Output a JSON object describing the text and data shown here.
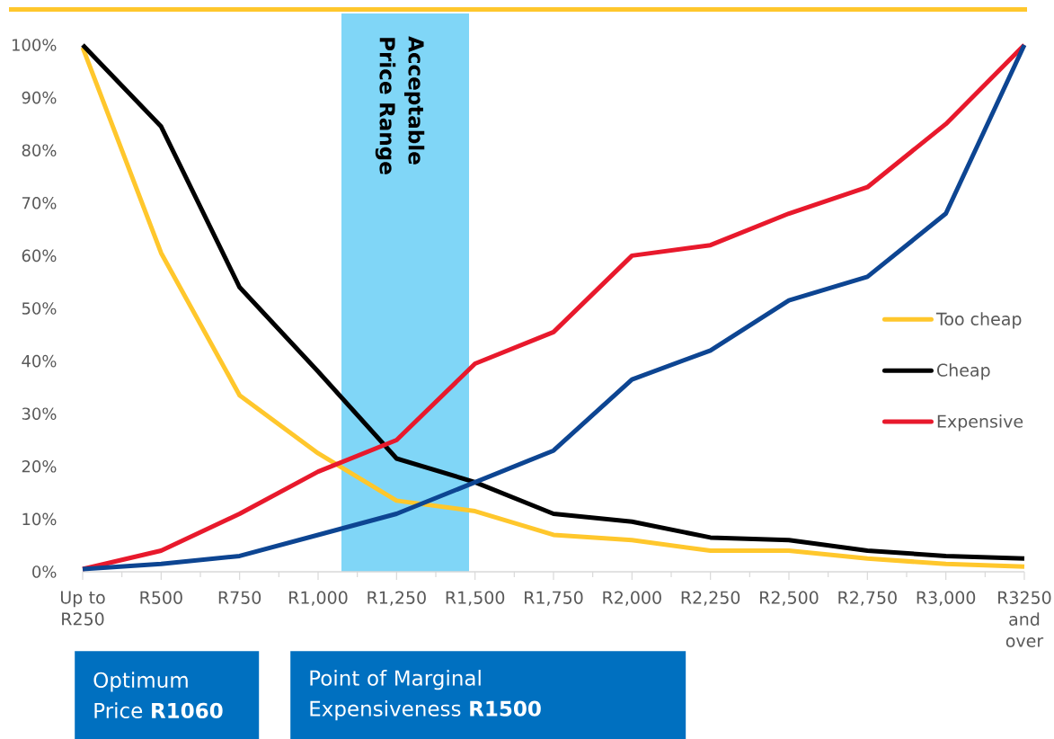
{
  "chart_data": {
    "type": "line",
    "categories": [
      "Up to R250",
      "R500",
      "R750",
      "R1,000",
      "R1,250",
      "R1,500",
      "R1,750",
      "R2,000",
      "R2,250",
      "R2,500",
      "R2,750",
      "R3,000",
      "R3250 and over"
    ],
    "ylim": [
      0,
      100
    ],
    "yticks": [
      {
        "value": 0,
        "label": "0%"
      },
      {
        "value": 10,
        "label": "10%"
      },
      {
        "value": 20,
        "label": "20%"
      },
      {
        "value": 30,
        "label": "30%"
      },
      {
        "value": 40,
        "label": "40%"
      },
      {
        "value": 50,
        "label": "50%"
      },
      {
        "value": 60,
        "label": "60%"
      },
      {
        "value": 70,
        "label": "70%"
      },
      {
        "value": 80,
        "label": "80%"
      },
      {
        "value": 90,
        "label": "90%"
      },
      {
        "value": 100,
        "label": "100%"
      }
    ],
    "series": [
      {
        "name": "Too cheap",
        "color": "#ffc72c",
        "values": [
          99.5,
          60.5,
          33.5,
          22.5,
          13.5,
          11.5,
          7,
          6,
          4,
          4,
          2.5,
          1.5,
          1
        ]
      },
      {
        "name": "Cheap",
        "color": "#000000",
        "values": [
          100,
          84.5,
          54,
          38,
          21.5,
          17,
          11,
          9.5,
          6.5,
          6,
          4,
          3,
          2.5
        ]
      },
      {
        "name": "Expensive",
        "color": "#e8192c",
        "values": [
          0.5,
          4,
          11,
          19,
          25,
          39.5,
          45.5,
          60,
          62,
          68,
          73,
          85,
          100
        ]
      },
      {
        "color": "#0d4592",
        "values": [
          0.5,
          1.5,
          3,
          7,
          11,
          17,
          23,
          36.5,
          42,
          51.5,
          56,
          68,
          100
        ]
      }
    ],
    "annotations": [
      "Acceptable Price Range",
      "Optimum Price **R1060**",
      "Point of Marginal Expensiveness **R1500**"
    ],
    "legend": "right",
    "grid": false,
    "marker": "none",
    "line_style": "solid"
  }
}
